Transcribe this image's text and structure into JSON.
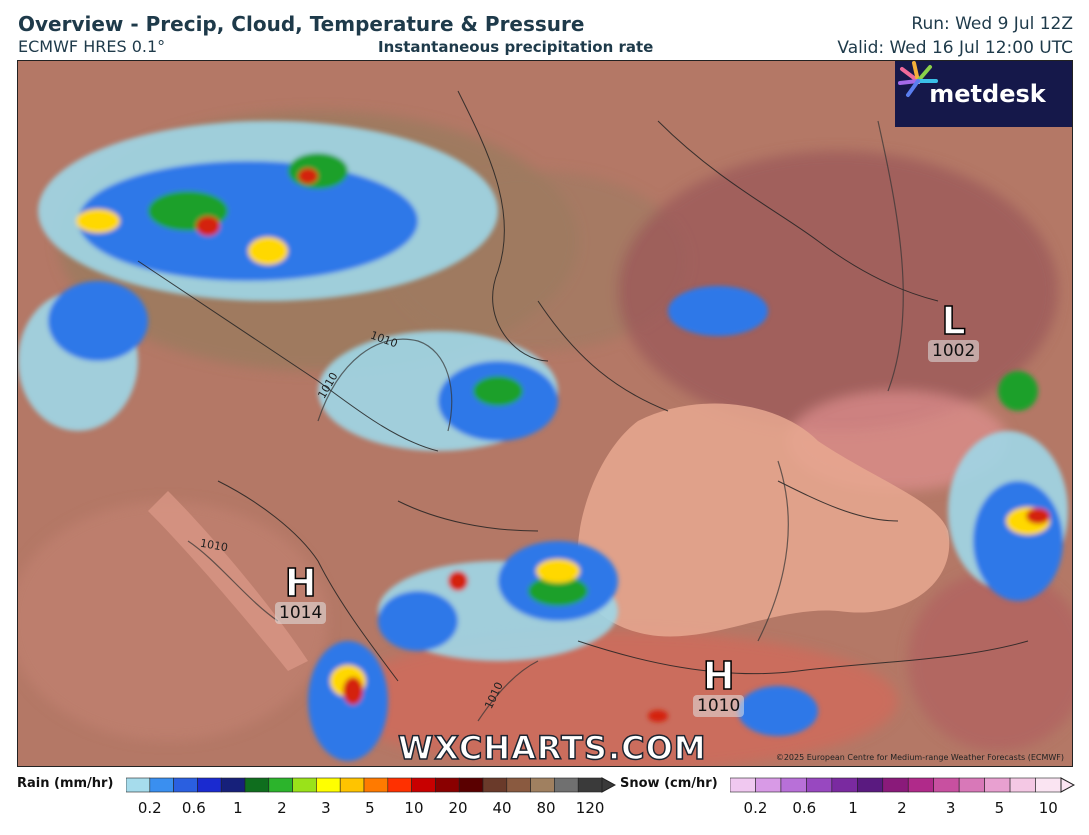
{
  "header": {
    "title": "Overview - Precip, Cloud, Temperature & Pressure",
    "model": "ECMWF HRES 0.1°",
    "layer": "Instantaneous precipitation rate",
    "run": "Run: Wed 9 Jul 12Z",
    "valid": "Valid: Wed 16 Jul 12:00 UTC"
  },
  "logo": {
    "text": "metdesk",
    "icon": "metdesk-logo-icon"
  },
  "pressure_systems": [
    {
      "letter": "L",
      "value": "1002"
    },
    {
      "letter": "H",
      "value": "1014"
    },
    {
      "letter": "H",
      "value": "1010"
    }
  ],
  "isobar_labels": [
    "1010",
    "1010",
    "1010",
    "1010"
  ],
  "watermark": "WXCHARTS.COM",
  "copyright": "©2025 European Centre for Medium-range Weather Forecasts (ECMWF)",
  "rain_legend": {
    "label": "Rain (mm/hr)",
    "ticks": [
      "0.2",
      "0.6",
      "1",
      "2",
      "3",
      "5",
      "10",
      "20",
      "40",
      "80",
      "120"
    ],
    "colors": [
      "#a6dcec",
      "#3a8ff0",
      "#2a5fe0",
      "#1a2ad0",
      "#16207a",
      "#0f6e1e",
      "#2cb42c",
      "#9ae21a",
      "#ffff00",
      "#ffc400",
      "#ff7a00",
      "#ff3000",
      "#c80000",
      "#8a0000",
      "#5a0000",
      "#6a3a2a",
      "#8a5a40",
      "#a08060",
      "#707070",
      "#3a3a3a"
    ]
  },
  "snow_legend": {
    "label": "Snow (cm/hr)",
    "ticks": [
      "0.2",
      "0.6",
      "1",
      "2",
      "3",
      "5",
      "10"
    ],
    "colors": [
      "#f0c8f0",
      "#d89ae6",
      "#b870d8",
      "#9848c0",
      "#7a2aa0",
      "#5a1a80",
      "#8a1a7a",
      "#b02a8a",
      "#c850a0",
      "#d878b8",
      "#e8a0d0",
      "#f4c8e4",
      "#fae4f2"
    ]
  }
}
